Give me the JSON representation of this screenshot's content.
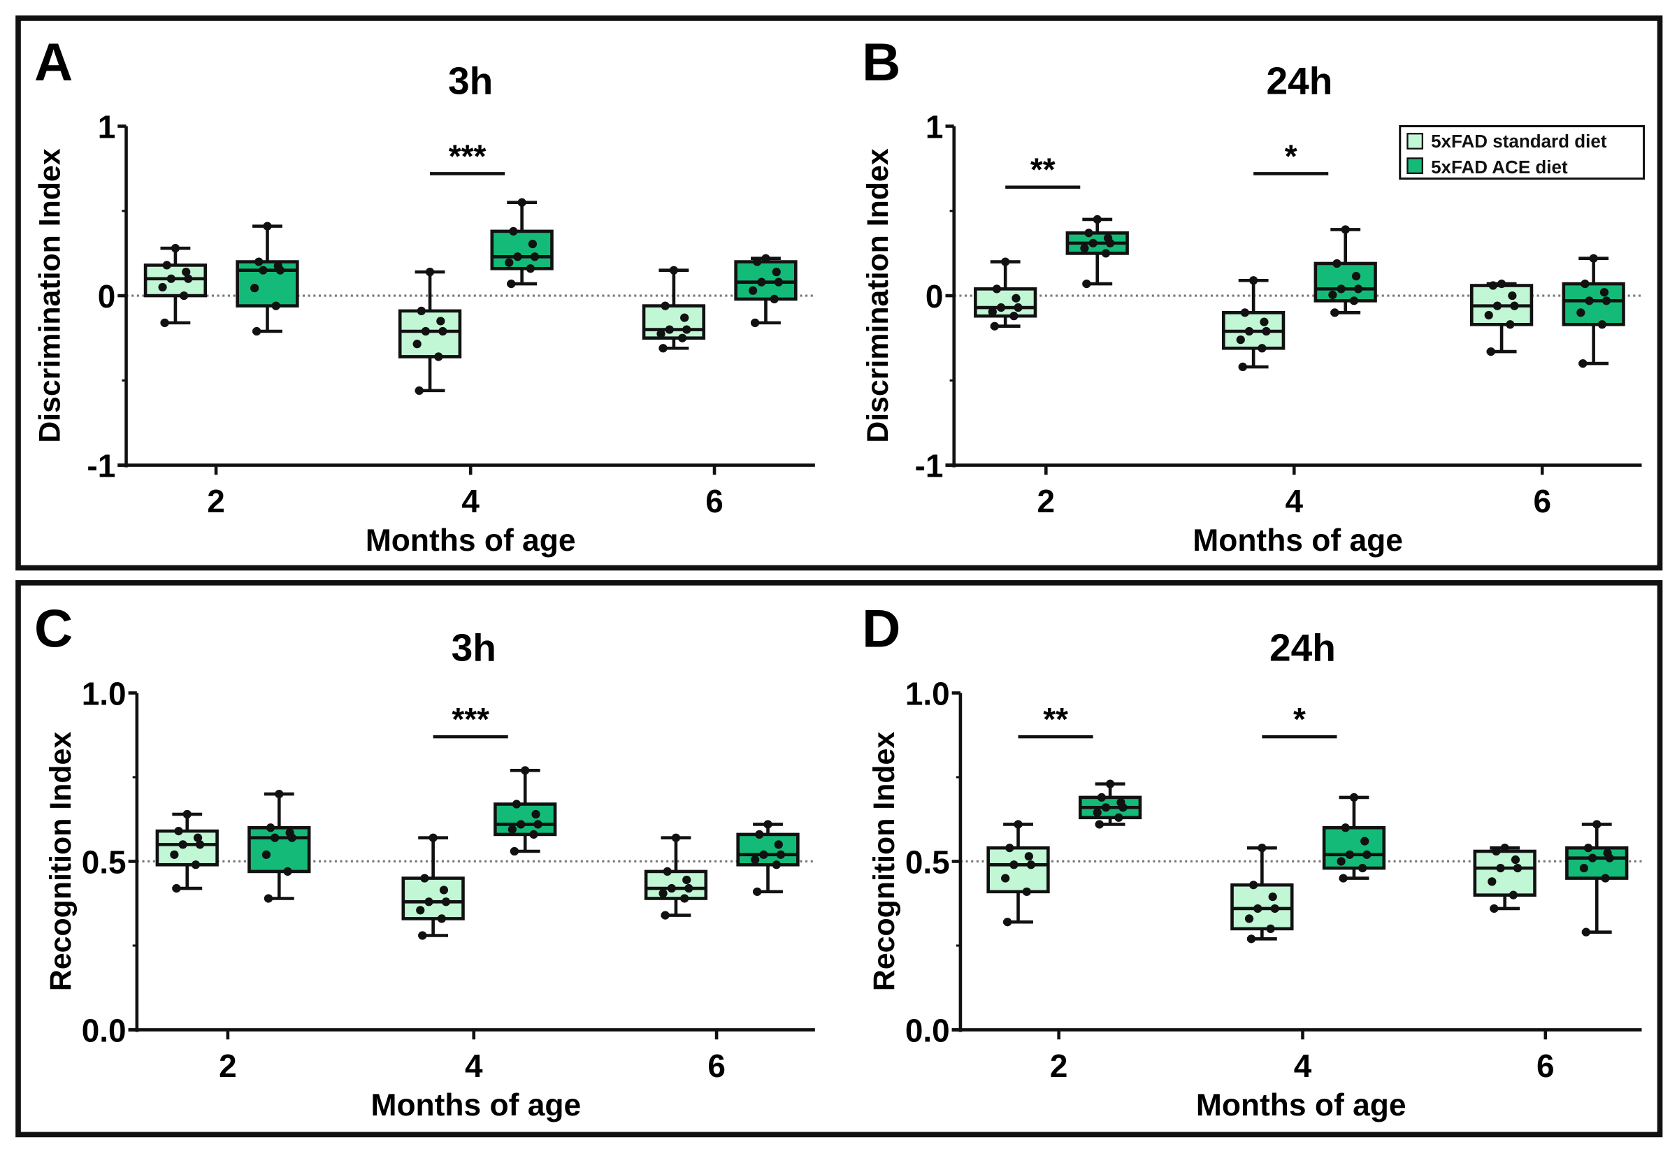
{
  "colors": {
    "standard": "#c2f7d6",
    "ace": "#14bb78",
    "stroke": "#111111"
  },
  "legend": {
    "items": [
      "5xFAD standard diet",
      "5xFAD ACE diet"
    ],
    "placement": "top-right of panel B"
  },
  "chart_data": [
    {
      "panel": "A",
      "type": "box",
      "title": "3h",
      "xlabel": "Months of age",
      "ylabel": "Discrimination Index",
      "ylim": [
        -1,
        1
      ],
      "yticks": [
        "-1",
        "0",
        "1"
      ],
      "reference_line": 0,
      "categories": [
        "2",
        "4",
        "6"
      ],
      "series": [
        {
          "name": "5xFAD standard diet",
          "boxes": [
            {
              "min": -0.16,
              "q1": 0.0,
              "median": 0.1,
              "q3": 0.18,
              "max": 0.28
            },
            {
              "min": -0.56,
              "q1": -0.36,
              "median": -0.21,
              "q3": -0.09,
              "max": 0.14
            },
            {
              "min": -0.31,
              "q1": -0.25,
              "median": -0.2,
              "q3": -0.06,
              "max": 0.15
            }
          ]
        },
        {
          "name": "5xFAD ACE diet",
          "boxes": [
            {
              "min": -0.21,
              "q1": -0.06,
              "median": 0.15,
              "q3": 0.2,
              "max": 0.41
            },
            {
              "min": 0.07,
              "q1": 0.16,
              "median": 0.23,
              "q3": 0.38,
              "max": 0.55
            },
            {
              "min": -0.16,
              "q1": -0.02,
              "median": 0.08,
              "q3": 0.2,
              "max": 0.22
            }
          ]
        }
      ],
      "significance": [
        {
          "category": "4",
          "label": "***",
          "y": 0.72
        }
      ]
    },
    {
      "panel": "B",
      "type": "box",
      "title": "24h",
      "xlabel": "Months of age",
      "ylabel": "Discrimination Index",
      "ylim": [
        -1,
        1
      ],
      "yticks": [
        "-1",
        "0",
        "1"
      ],
      "reference_line": 0,
      "categories": [
        "2",
        "4",
        "6"
      ],
      "series": [
        {
          "name": "5xFAD standard diet",
          "boxes": [
            {
              "min": -0.18,
              "q1": -0.12,
              "median": -0.07,
              "q3": 0.04,
              "max": 0.2
            },
            {
              "min": -0.42,
              "q1": -0.31,
              "median": -0.21,
              "q3": -0.1,
              "max": 0.09
            },
            {
              "min": -0.33,
              "q1": -0.17,
              "median": -0.06,
              "q3": 0.06,
              "max": 0.07
            }
          ]
        },
        {
          "name": "5xFAD ACE diet",
          "boxes": [
            {
              "min": 0.07,
              "q1": 0.25,
              "median": 0.31,
              "q3": 0.37,
              "max": 0.45
            },
            {
              "min": -0.1,
              "q1": -0.03,
              "median": 0.04,
              "q3": 0.19,
              "max": 0.39
            },
            {
              "min": -0.4,
              "q1": -0.17,
              "median": -0.03,
              "q3": 0.07,
              "max": 0.22
            }
          ]
        }
      ],
      "significance": [
        {
          "category": "2",
          "label": "**",
          "y": 0.64
        },
        {
          "category": "4",
          "label": "*",
          "y": 0.72
        }
      ]
    },
    {
      "panel": "C",
      "type": "box",
      "title": "3h",
      "xlabel": "Months of age",
      "ylabel": "Recognition Index",
      "ylim": [
        0,
        1
      ],
      "yticks": [
        "0.0",
        "0.5",
        "1.0"
      ],
      "reference_line": 0.5,
      "categories": [
        "2",
        "4",
        "6"
      ],
      "series": [
        {
          "name": "5xFAD standard diet",
          "boxes": [
            {
              "min": 0.42,
              "q1": 0.49,
              "median": 0.55,
              "q3": 0.59,
              "max": 0.64
            },
            {
              "min": 0.28,
              "q1": 0.33,
              "median": 0.38,
              "q3": 0.45,
              "max": 0.57
            },
            {
              "min": 0.34,
              "q1": 0.39,
              "median": 0.42,
              "q3": 0.47,
              "max": 0.57
            }
          ]
        },
        {
          "name": "5xFAD ACE diet",
          "boxes": [
            {
              "min": 0.39,
              "q1": 0.47,
              "median": 0.57,
              "q3": 0.6,
              "max": 0.7
            },
            {
              "min": 0.53,
              "q1": 0.58,
              "median": 0.61,
              "q3": 0.67,
              "max": 0.77
            },
            {
              "min": 0.41,
              "q1": 0.49,
              "median": 0.52,
              "q3": 0.58,
              "max": 0.61
            }
          ]
        }
      ],
      "significance": [
        {
          "category": "4",
          "label": "***",
          "y": 0.87
        }
      ]
    },
    {
      "panel": "D",
      "type": "box",
      "title": "24h",
      "xlabel": "Months of age",
      "ylabel": "Recognition Index",
      "ylim": [
        0,
        1
      ],
      "yticks": [
        "0.0",
        "0.5",
        "1.0"
      ],
      "reference_line": 0.5,
      "categories": [
        "2",
        "4",
        "6"
      ],
      "series": [
        {
          "name": "5xFAD standard diet",
          "boxes": [
            {
              "min": 0.32,
              "q1": 0.41,
              "median": 0.49,
              "q3": 0.54,
              "max": 0.61
            },
            {
              "min": 0.27,
              "q1": 0.3,
              "median": 0.36,
              "q3": 0.43,
              "max": 0.54
            },
            {
              "min": 0.36,
              "q1": 0.4,
              "median": 0.48,
              "q3": 0.53,
              "max": 0.54
            }
          ]
        },
        {
          "name": "5xFAD ACE diet",
          "boxes": [
            {
              "min": 0.61,
              "q1": 0.63,
              "median": 0.66,
              "q3": 0.69,
              "max": 0.73
            },
            {
              "min": 0.45,
              "q1": 0.48,
              "median": 0.52,
              "q3": 0.6,
              "max": 0.69
            },
            {
              "min": 0.29,
              "q1": 0.45,
              "median": 0.51,
              "q3": 0.54,
              "max": 0.61
            }
          ]
        }
      ],
      "significance": [
        {
          "category": "2",
          "label": "**",
          "y": 0.87
        },
        {
          "category": "4",
          "label": "*",
          "y": 0.87
        }
      ]
    }
  ]
}
